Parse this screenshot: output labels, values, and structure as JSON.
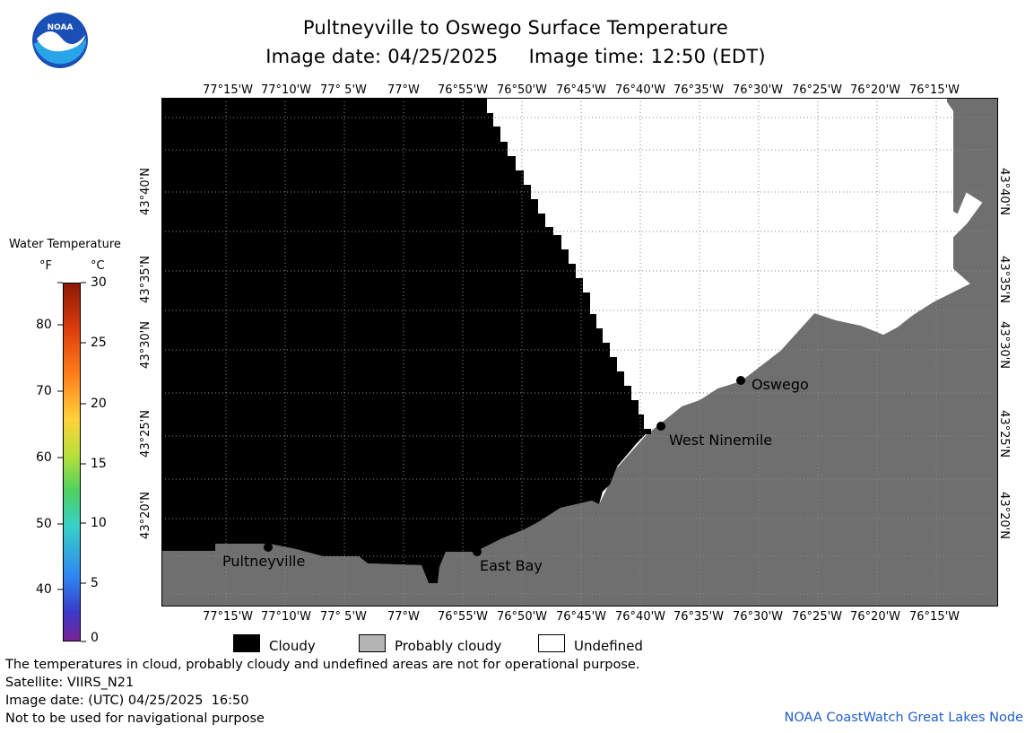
{
  "header": {
    "title": "Pultneyville to Oswego Surface Temperature",
    "date_line": "Image date: 04/25/2025     Image time: 12:50 (EDT)"
  },
  "colorbar": {
    "title": "Water Temperature",
    "unit_f": "°F",
    "unit_c": "°C",
    "f_ticks": [
      "80",
      "70",
      "60",
      "50",
      "40"
    ],
    "c_ticks": [
      "30",
      "25",
      "20",
      "15",
      "10",
      "5",
      "0"
    ]
  },
  "map": {
    "lon_labels": [
      "77°15'W",
      "77°10'W",
      "77° 5'W",
      "77°W",
      "76°55'W",
      "76°50'W",
      "76°45'W",
      "76°40'W",
      "76°35'W",
      "76°30'W",
      "76°25'W",
      "76°20'W",
      "76°15'W"
    ],
    "lat_labels": [
      "43°40'N",
      "43°35'N",
      "43°30'N",
      "43°25'N",
      "43°20'N"
    ],
    "places": {
      "oswego": "Oswego",
      "west_ninemile": "West Ninemile",
      "pultneyville": "Pultneyville",
      "east_bay": "East Bay"
    },
    "colors": {
      "cloudy": "#000000",
      "probably_cloudy": "#6f6f6f",
      "undefined": "#ffffff"
    }
  },
  "legend": {
    "cloudy": "Cloudy",
    "probably_cloudy": "Probably cloudy",
    "undefined": "Undefined"
  },
  "notes": {
    "disclaimer": "The temperatures in cloud, probably cloudy and undefined areas are not for operational purpose.",
    "satellite": "Satellite: VIIRS_N21",
    "utc_date": "Image date: (UTC) 04/25/2025  16:50",
    "nav_warning": "Not to be used for navigational purpose",
    "credit": "NOAA CoastWatch Great Lakes Node"
  },
  "logo": {
    "text": "NOAA"
  }
}
